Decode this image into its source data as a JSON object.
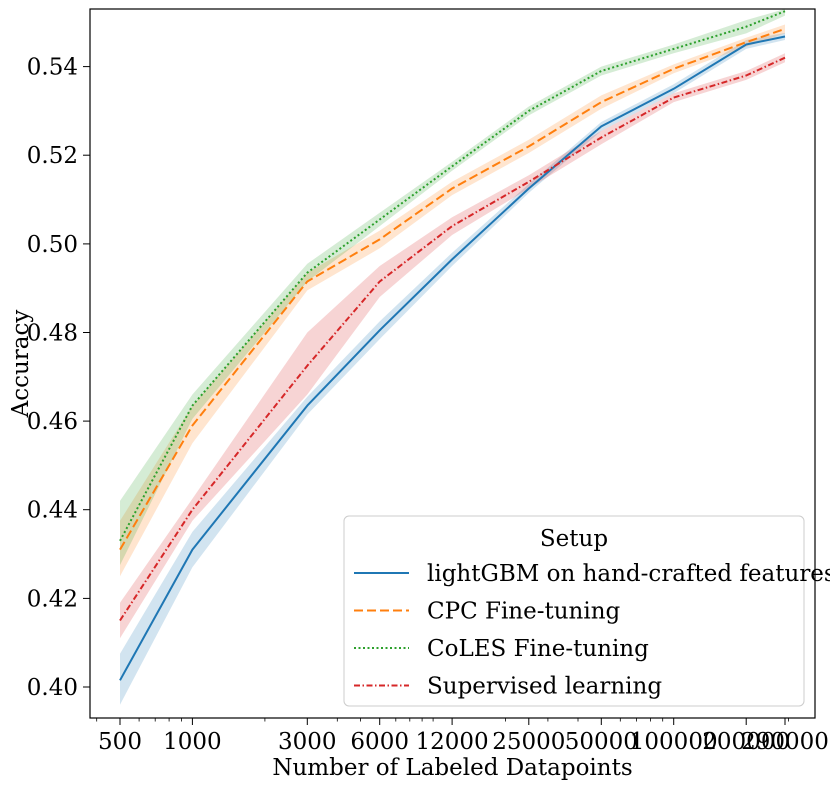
{
  "chart_data": {
    "type": "line",
    "title": "",
    "xlabel": "Number of Labeled Datapoints",
    "ylabel": "Accuracy",
    "x_scale": "log",
    "x": [
      500,
      1000,
      3000,
      6000,
      12000,
      25000,
      50000,
      100000,
      200000,
      290000
    ],
    "x_tick_labels": [
      "500",
      "1000",
      "3000",
      "6000",
      "12000",
      "25000",
      "50000",
      "100000",
      "200000",
      "290000"
    ],
    "ylim": [
      0.393,
      0.553
    ],
    "y_ticks": [
      0.4,
      0.42,
      0.44,
      0.46,
      0.48,
      0.5,
      0.52,
      0.54
    ],
    "y_tick_labels": [
      "0.40",
      "0.42",
      "0.44",
      "0.46",
      "0.48",
      "0.50",
      "0.52",
      "0.54"
    ],
    "grid": false,
    "legend": {
      "title": "Setup",
      "placement": "lower-right"
    },
    "series": [
      {
        "name": "lightGBM on hand-crafted features",
        "color": "#1f77b4",
        "line_style": "solid",
        "values": [
          0.4015,
          0.431,
          0.4635,
          0.4805,
          0.4965,
          0.5125,
          0.5265,
          0.535,
          0.545,
          0.5468
        ],
        "lower": [
          0.396,
          0.427,
          0.4615,
          0.4785,
          0.495,
          0.5115,
          0.5255,
          0.534,
          0.544,
          0.546
        ],
        "upper": [
          0.4075,
          0.435,
          0.4655,
          0.4825,
          0.498,
          0.5135,
          0.5275,
          0.536,
          0.546,
          0.5476
        ]
      },
      {
        "name": "CPC Fine-tuning",
        "color": "#ff7f0e",
        "line_style": "dashed",
        "values": [
          0.431,
          0.459,
          0.4915,
          0.501,
          0.5125,
          0.522,
          0.532,
          0.5395,
          0.5455,
          0.5485
        ],
        "lower": [
          0.425,
          0.455,
          0.4895,
          0.499,
          0.511,
          0.5205,
          0.5305,
          0.5385,
          0.5445,
          0.5475
        ],
        "upper": [
          0.4375,
          0.4635,
          0.4935,
          0.503,
          0.514,
          0.5235,
          0.5335,
          0.5405,
          0.5465,
          0.5495
        ]
      },
      {
        "name": "CoLES Fine-tuning",
        "color": "#2ca02c",
        "line_style": "dotted",
        "values": [
          0.433,
          0.4635,
          0.4935,
          0.5055,
          0.5175,
          0.53,
          0.539,
          0.544,
          0.549,
          0.5525
        ],
        "lower": [
          0.4275,
          0.4605,
          0.4915,
          0.504,
          0.5165,
          0.529,
          0.538,
          0.543,
          0.5475,
          0.5515
        ],
        "upper": [
          0.442,
          0.466,
          0.4955,
          0.507,
          0.5185,
          0.531,
          0.54,
          0.545,
          0.5505,
          0.553
        ]
      },
      {
        "name": "Supervised learning",
        "color": "#d62728",
        "line_style": "dashdot",
        "values": [
          0.415,
          0.44,
          0.4725,
          0.4915,
          0.504,
          0.514,
          0.524,
          0.533,
          0.538,
          0.542
        ],
        "lower": [
          0.411,
          0.4375,
          0.466,
          0.488,
          0.502,
          0.5125,
          0.5225,
          0.532,
          0.537,
          0.541
        ],
        "upper": [
          0.419,
          0.4425,
          0.48,
          0.495,
          0.506,
          0.5155,
          0.5255,
          0.534,
          0.539,
          0.543
        ]
      }
    ]
  }
}
